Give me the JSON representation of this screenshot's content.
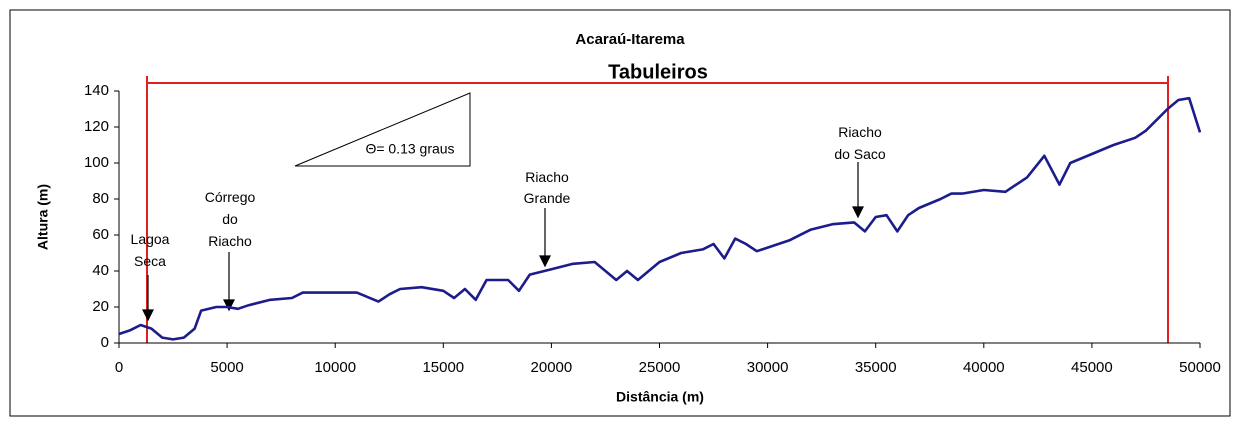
{
  "chart_data": {
    "type": "line",
    "title": "Acaraú-Itarema",
    "xlabel": "Distância (m)",
    "ylabel": "Altura (m)",
    "region_label": "Tabuleiros",
    "slope_label": "Θ= 0.13 graus",
    "annotations": [
      [
        "Lagoa",
        "Seca"
      ],
      [
        "Córrego",
        "do",
        "Riacho"
      ],
      [
        "Riacho",
        "Grande"
      ],
      [
        "Riacho",
        "do Saco"
      ]
    ],
    "x": [
      0,
      500,
      1000,
      1500,
      2000,
      2500,
      3000,
      3500,
      3800,
      4500,
      5000,
      5500,
      6000,
      7000,
      8000,
      8500,
      9000,
      10000,
      11000,
      12000,
      12500,
      13000,
      14000,
      15000,
      15500,
      16000,
      16500,
      17000,
      18000,
      18500,
      19000,
      20000,
      21000,
      22000,
      23000,
      23500,
      24000,
      25000,
      26000,
      27000,
      27500,
      28000,
      28500,
      29000,
      29500,
      30000,
      31000,
      32000,
      33000,
      34000,
      34500,
      35000,
      35500,
      36000,
      36500,
      37000,
      38000,
      38500,
      39000,
      40000,
      41000,
      42000,
      42800,
      43500,
      44000,
      45000,
      46000,
      47000,
      47500,
      48000,
      48500,
      49000,
      49500,
      50000
    ],
    "series": [
      {
        "name": "Altura",
        "color": "#1c1c8c",
        "values": [
          5,
          7,
          10,
          8,
          3,
          2,
          3,
          8,
          18,
          20,
          20,
          19,
          21,
          24,
          25,
          28,
          28,
          28,
          28,
          23,
          27,
          30,
          31,
          29,
          25,
          30,
          24,
          35,
          35,
          29,
          38,
          41,
          44,
          45,
          35,
          40,
          35,
          45,
          50,
          52,
          55,
          47,
          58,
          55,
          51,
          53,
          57,
          63,
          66,
          67,
          62,
          70,
          71,
          62,
          71,
          75,
          80,
          83,
          83,
          85,
          84,
          92,
          104,
          88,
          100,
          105,
          110,
          114,
          118,
          124,
          130,
          135,
          136,
          117
        ]
      }
    ],
    "xlim": [
      0,
      50000
    ],
    "ylim": [
      0,
      140
    ],
    "xticks": [
      0,
      5000,
      10000,
      15000,
      20000,
      25000,
      30000,
      35000,
      40000,
      45000,
      50000
    ],
    "yticks": [
      0,
      20,
      40,
      60,
      80,
      100,
      120,
      140
    ]
  }
}
